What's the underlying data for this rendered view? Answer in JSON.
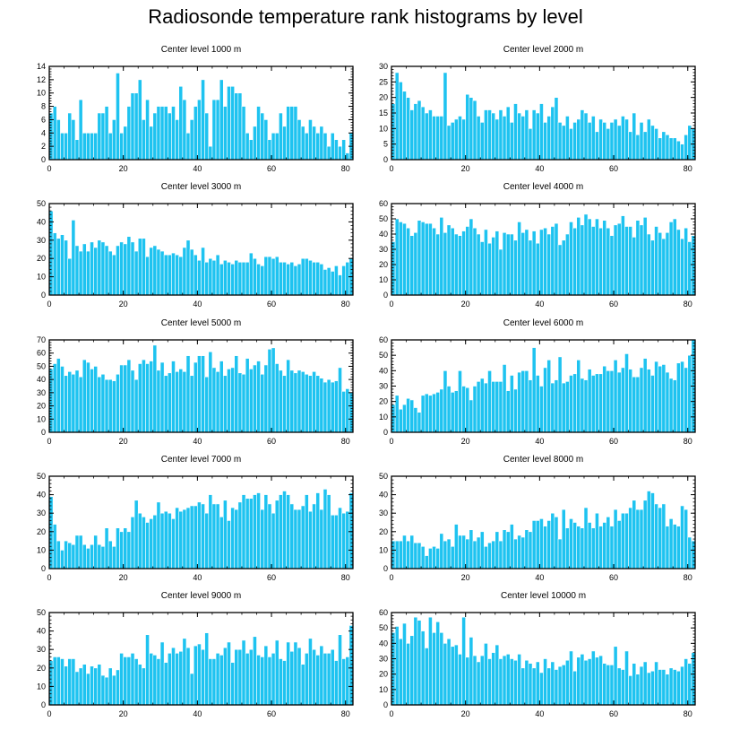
{
  "figure": {
    "title": "Radiosonde temperature rank histograms by level",
    "bar_color": "#1EC3F0",
    "bar_edge_color": "#FFFFFF",
    "axis_color": "#000000"
  },
  "chart_data": [
    {
      "type": "bar",
      "title": "Center level 1000 m",
      "xlim": [
        0,
        82
      ],
      "ylim": [
        0,
        14
      ],
      "xticks": [
        0,
        20,
        40,
        60,
        80
      ],
      "yticks": [
        0,
        2,
        4,
        6,
        8,
        10,
        12,
        14
      ],
      "values": [
        7,
        8,
        6,
        4,
        4,
        7,
        6,
        3,
        9,
        4,
        4,
        4,
        4,
        7,
        7,
        8,
        4,
        6,
        13,
        4,
        5,
        8,
        10,
        10,
        12,
        6,
        9,
        5,
        7,
        8,
        8,
        8,
        7,
        8,
        6,
        11,
        9,
        4,
        6,
        8,
        9,
        12,
        7,
        2,
        9,
        9,
        12,
        8,
        11,
        11,
        10,
        10,
        8,
        4,
        3,
        5,
        8,
        7,
        6,
        3,
        4,
        4,
        7,
        5,
        8,
        8,
        8,
        6,
        5,
        4,
        6,
        5,
        4,
        5,
        4,
        2,
        4,
        3,
        2,
        3,
        1,
        4
      ]
    },
    {
      "type": "bar",
      "title": "Center level 2000 m",
      "xlim": [
        0,
        82
      ],
      "ylim": [
        0,
        30
      ],
      "xticks": [
        0,
        20,
        40,
        60,
        80
      ],
      "yticks": [
        0,
        5,
        10,
        15,
        20,
        25,
        30
      ],
      "values": [
        18,
        28,
        25,
        22,
        20,
        16,
        18,
        19,
        17,
        15,
        16,
        14,
        14,
        14,
        28,
        11,
        12,
        13,
        14,
        13,
        21,
        20,
        19,
        14,
        12,
        16,
        16,
        15,
        13,
        16,
        14,
        17,
        12,
        18,
        15,
        14,
        16,
        10,
        16,
        15,
        18,
        12,
        14,
        17,
        20,
        12,
        11,
        14,
        10,
        12,
        13,
        16,
        15,
        12,
        14,
        9,
        13,
        12,
        10,
        12,
        13,
        11,
        14,
        13,
        9,
        15,
        8,
        12,
        9,
        13,
        11,
        10,
        7,
        9,
        8,
        7,
        7,
        6,
        5,
        8,
        11,
        10
      ]
    },
    {
      "type": "bar",
      "title": "Center level 3000 m",
      "xlim": [
        0,
        82
      ],
      "ylim": [
        0,
        50
      ],
      "xticks": [
        0,
        20,
        40,
        60,
        80
      ],
      "yticks": [
        0,
        10,
        20,
        30,
        40,
        50
      ],
      "values": [
        46,
        34,
        31,
        33,
        30,
        20,
        41,
        27,
        24,
        28,
        24,
        29,
        26,
        30,
        29,
        27,
        24,
        22,
        27,
        29,
        28,
        32,
        29,
        24,
        31,
        31,
        21,
        26,
        27,
        25,
        24,
        22,
        22,
        23,
        22,
        21,
        26,
        30,
        25,
        22,
        19,
        26,
        18,
        20,
        19,
        22,
        17,
        19,
        18,
        17,
        19,
        18,
        18,
        18,
        23,
        20,
        17,
        16,
        21,
        21,
        20,
        21,
        18,
        18,
        17,
        18,
        16,
        17,
        20,
        20,
        19,
        18,
        18,
        17,
        14,
        15,
        13,
        16,
        11,
        16,
        18,
        20
      ]
    },
    {
      "type": "bar",
      "title": "Center level 4000 m",
      "xlim": [
        0,
        82
      ],
      "ylim": [
        0,
        60
      ],
      "xticks": [
        0,
        20,
        40,
        60,
        80
      ],
      "yticks": [
        0,
        10,
        20,
        30,
        40,
        50,
        60
      ],
      "values": [
        35,
        50,
        48,
        47,
        44,
        39,
        41,
        49,
        48,
        47,
        47,
        44,
        40,
        51,
        41,
        46,
        44,
        40,
        39,
        42,
        45,
        50,
        44,
        40,
        35,
        43,
        34,
        38,
        42,
        30,
        41,
        40,
        40,
        36,
        48,
        41,
        43,
        36,
        42,
        34,
        43,
        44,
        40,
        45,
        47,
        33,
        36,
        40,
        48,
        44,
        51,
        46,
        53,
        50,
        45,
        50,
        44,
        49,
        44,
        39,
        46,
        47,
        52,
        45,
        45,
        38,
        49,
        46,
        51,
        40,
        36,
        45,
        41,
        37,
        41,
        48,
        50,
        43,
        37,
        44,
        35,
        39
      ]
    },
    {
      "type": "bar",
      "title": "Center level 5000 m",
      "xlim": [
        0,
        82
      ],
      "ylim": [
        0,
        70
      ],
      "xticks": [
        0,
        20,
        40,
        60,
        80
      ],
      "yticks": [
        0,
        10,
        20,
        30,
        40,
        50,
        60,
        70
      ],
      "values": [
        48,
        52,
        56,
        50,
        43,
        46,
        44,
        47,
        42,
        55,
        53,
        48,
        50,
        42,
        44,
        40,
        40,
        39,
        44,
        51,
        51,
        55,
        47,
        40,
        52,
        55,
        52,
        54,
        66,
        47,
        53,
        43,
        45,
        54,
        46,
        48,
        46,
        58,
        43,
        53,
        58,
        58,
        42,
        61,
        49,
        46,
        54,
        43,
        48,
        49,
        58,
        45,
        44,
        56,
        48,
        51,
        54,
        44,
        51,
        63,
        64,
        52,
        47,
        43,
        55,
        47,
        45,
        47,
        46,
        44,
        43,
        46,
        43,
        41,
        38,
        40,
        38,
        39,
        49,
        31,
        33,
        30
      ]
    },
    {
      "type": "bar",
      "title": "Center level 6000 m",
      "xlim": [
        0,
        82
      ],
      "ylim": [
        0,
        60
      ],
      "xticks": [
        0,
        20,
        40,
        60,
        80
      ],
      "yticks": [
        0,
        10,
        20,
        30,
        40,
        50,
        60
      ],
      "values": [
        18,
        24,
        15,
        18,
        22,
        21,
        16,
        13,
        24,
        25,
        24,
        25,
        26,
        28,
        40,
        30,
        26,
        27,
        40,
        30,
        29,
        21,
        30,
        33,
        35,
        32,
        40,
        33,
        33,
        33,
        44,
        27,
        37,
        28,
        39,
        40,
        40,
        34,
        55,
        37,
        30,
        42,
        47,
        32,
        34,
        49,
        32,
        33,
        37,
        38,
        47,
        35,
        34,
        41,
        37,
        38,
        38,
        43,
        40,
        40,
        47,
        39,
        42,
        51,
        41,
        36,
        36,
        42,
        48,
        41,
        37,
        46,
        43,
        44,
        39,
        35,
        34,
        45,
        46,
        42,
        50,
        60
      ]
    },
    {
      "type": "bar",
      "title": "Center level 7000 m",
      "xlim": [
        0,
        82
      ],
      "ylim": [
        0,
        50
      ],
      "xticks": [
        0,
        20,
        40,
        60,
        80
      ],
      "yticks": [
        0,
        10,
        20,
        30,
        40,
        50
      ],
      "values": [
        39,
        24,
        15,
        10,
        15,
        14,
        13,
        18,
        18,
        13,
        11,
        13,
        18,
        13,
        12,
        22,
        15,
        12,
        22,
        20,
        22,
        20,
        28,
        37,
        30,
        28,
        25,
        27,
        29,
        36,
        30,
        31,
        30,
        27,
        33,
        31,
        32,
        33,
        34,
        34,
        36,
        35,
        30,
        40,
        35,
        35,
        28,
        37,
        26,
        33,
        32,
        36,
        40,
        38,
        38,
        40,
        41,
        32,
        40,
        35,
        30,
        37,
        40,
        42,
        40,
        35,
        32,
        32,
        34,
        40,
        31,
        35,
        41,
        32,
        43,
        40,
        29,
        29,
        33,
        30,
        31,
        41
      ]
    },
    {
      "type": "bar",
      "title": "Center level 8000 m",
      "xlim": [
        0,
        82
      ],
      "ylim": [
        0,
        50
      ],
      "xticks": [
        0,
        20,
        40,
        60,
        80
      ],
      "yticks": [
        0,
        10,
        20,
        30,
        40,
        50
      ],
      "values": [
        15,
        15,
        15,
        18,
        15,
        18,
        14,
        14,
        12,
        7,
        11,
        12,
        11,
        19,
        15,
        16,
        12,
        24,
        18,
        18,
        16,
        21,
        15,
        17,
        20,
        12,
        14,
        15,
        20,
        15,
        21,
        20,
        24,
        16,
        18,
        17,
        21,
        20,
        26,
        26,
        27,
        23,
        26,
        30,
        28,
        16,
        32,
        22,
        27,
        25,
        23,
        22,
        33,
        25,
        22,
        30,
        23,
        25,
        28,
        23,
        32,
        26,
        30,
        30,
        33,
        37,
        32,
        32,
        37,
        42,
        41,
        35,
        33,
        35,
        23,
        27,
        24,
        23,
        34,
        32,
        17,
        15
      ]
    },
    {
      "type": "bar",
      "title": "Center level 9000 m",
      "xlim": [
        0,
        82
      ],
      "ylim": [
        0,
        50
      ],
      "xticks": [
        0,
        20,
        40,
        60,
        80
      ],
      "yticks": [
        0,
        10,
        20,
        30,
        40,
        50
      ],
      "values": [
        24,
        26,
        26,
        25,
        21,
        25,
        25,
        18,
        20,
        22,
        17,
        21,
        20,
        22,
        16,
        15,
        20,
        16,
        19,
        28,
        26,
        26,
        28,
        25,
        22,
        20,
        38,
        28,
        27,
        25,
        34,
        23,
        28,
        31,
        28,
        29,
        36,
        31,
        17,
        32,
        33,
        30,
        39,
        25,
        25,
        28,
        27,
        31,
        34,
        23,
        30,
        30,
        35,
        28,
        30,
        37,
        27,
        26,
        32,
        26,
        28,
        35,
        25,
        24,
        34,
        29,
        34,
        31,
        22,
        28,
        36,
        30,
        27,
        32,
        28,
        28,
        30,
        24,
        38,
        25,
        26,
        43
      ]
    },
    {
      "type": "bar",
      "title": "Center level 10000 m",
      "xlim": [
        0,
        82
      ],
      "ylim": [
        0,
        60
      ],
      "xticks": [
        0,
        20,
        40,
        60,
        80
      ],
      "yticks": [
        0,
        10,
        20,
        30,
        40,
        50,
        60
      ],
      "values": [
        47,
        51,
        43,
        53,
        40,
        45,
        57,
        55,
        48,
        37,
        57,
        47,
        54,
        47,
        40,
        43,
        38,
        39,
        33,
        57,
        31,
        44,
        32,
        28,
        32,
        40,
        30,
        34,
        39,
        30,
        32,
        33,
        30,
        29,
        33,
        24,
        29,
        27,
        24,
        28,
        21,
        30,
        24,
        28,
        23,
        25,
        26,
        29,
        35,
        22,
        31,
        33,
        29,
        30,
        35,
        31,
        32,
        27,
        26,
        26,
        38,
        24,
        23,
        35,
        19,
        27,
        20,
        25,
        28,
        21,
        22,
        28,
        23,
        23,
        20,
        24,
        23,
        22,
        25,
        30,
        27,
        34
      ]
    }
  ]
}
